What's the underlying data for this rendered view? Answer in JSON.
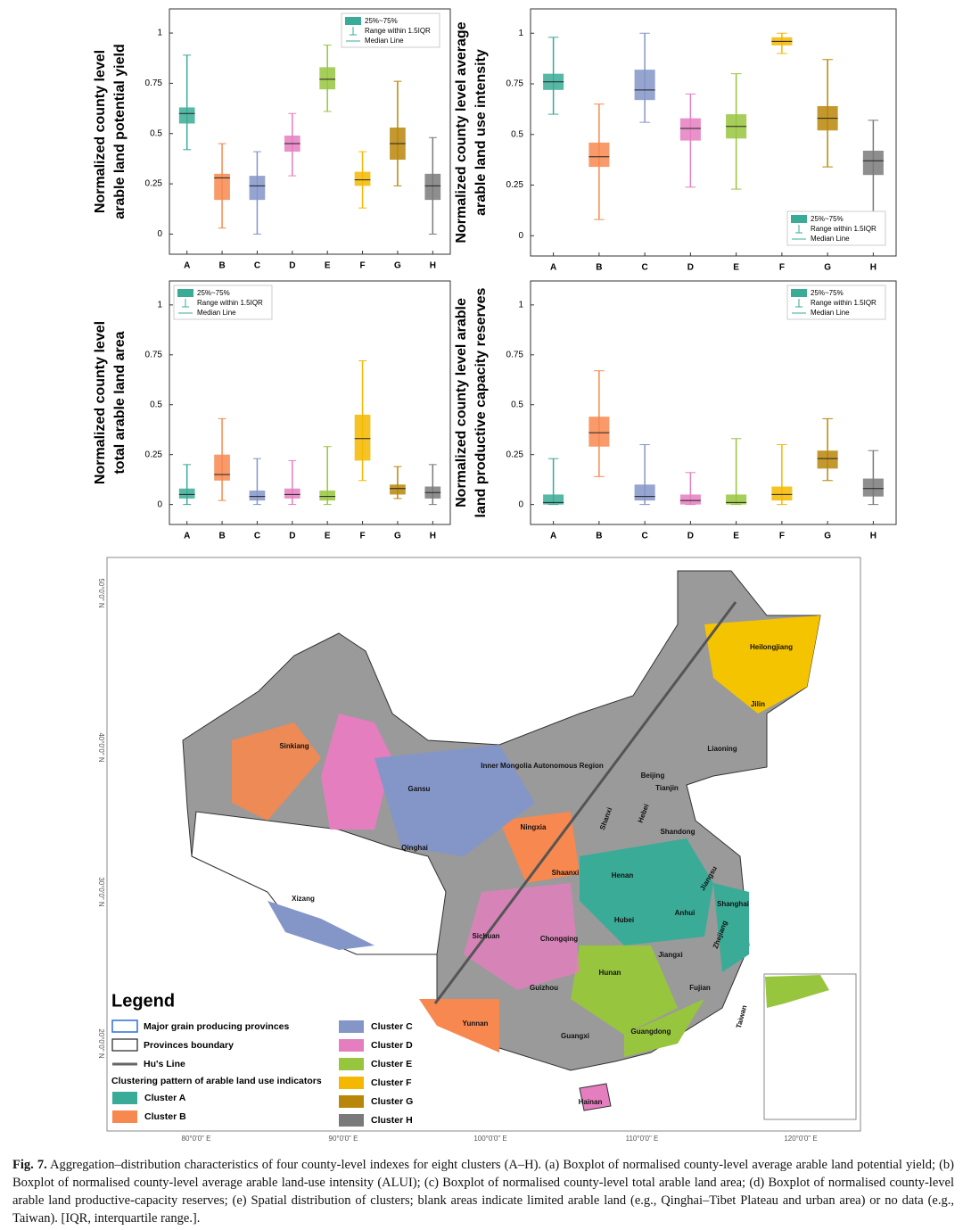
{
  "chart_data": [
    {
      "type": "boxplot",
      "panel": "a",
      "ylabel": [
        "Normalized county level",
        "arable land potential yield"
      ],
      "categories": [
        "A",
        "B",
        "C",
        "D",
        "E",
        "F",
        "G",
        "H"
      ],
      "colors": [
        "#3aab97",
        "#f7884f",
        "#8495c8",
        "#e57ebf",
        "#98c53e",
        "#f5b800",
        "#b8860b",
        "#7a7a7a"
      ],
      "low": [
        0.42,
        0.03,
        0,
        0.29,
        0.61,
        0.13,
        0.24,
        0
      ],
      "q1": [
        0.55,
        0.17,
        0.17,
        0.41,
        0.72,
        0.24,
        0.37,
        0.17
      ],
      "median": [
        0.6,
        0.28,
        0.24,
        0.45,
        0.77,
        0.27,
        0.45,
        0.24
      ],
      "q3": [
        0.63,
        0.3,
        0.29,
        0.49,
        0.83,
        0.31,
        0.53,
        0.3
      ],
      "high": [
        0.89,
        0.45,
        0.41,
        0.6,
        0.94,
        0.41,
        0.76,
        0.48
      ],
      "ylim": [
        -0.1,
        1.12
      ],
      "yticks": [
        0,
        0.25,
        0.5,
        0.75,
        1
      ],
      "legend": [
        "25%~75%",
        "Range within 1.5IQR",
        "Median Line"
      ],
      "legend_position": "upper right"
    },
    {
      "type": "boxplot",
      "panel": "b",
      "ylabel": [
        "Normalized county level average",
        "arable land use intensity"
      ],
      "categories": [
        "A",
        "B",
        "C",
        "D",
        "E",
        "F",
        "G",
        "H"
      ],
      "colors": [
        "#3aab97",
        "#f7884f",
        "#8495c8",
        "#e57ebf",
        "#98c53e",
        "#f5b800",
        "#b8860b",
        "#7a7a7a"
      ],
      "low": [
        0.6,
        0.08,
        0.56,
        0.24,
        0.23,
        0.9,
        0.34,
        0.02
      ],
      "q1": [
        0.72,
        0.34,
        0.67,
        0.47,
        0.48,
        0.94,
        0.52,
        0.3
      ],
      "median": [
        0.76,
        0.39,
        0.72,
        0.53,
        0.54,
        0.96,
        0.58,
        0.37
      ],
      "q3": [
        0.8,
        0.46,
        0.82,
        0.58,
        0.6,
        0.98,
        0.64,
        0.42
      ],
      "high": [
        0.98,
        0.65,
        1,
        0.7,
        0.8,
        1,
        0.87,
        0.57
      ],
      "ylim": [
        -0.1,
        1.12
      ],
      "yticks": [
        0,
        0.25,
        0.5,
        0.75,
        1
      ],
      "legend": [
        "25%~75%",
        "Range within 1.5IQR",
        "Median Line"
      ],
      "legend_position": "lower right"
    },
    {
      "type": "boxplot",
      "panel": "c",
      "ylabel": [
        "Normalized county level",
        "total arable land area"
      ],
      "categories": [
        "A",
        "B",
        "C",
        "D",
        "E",
        "F",
        "G",
        "H"
      ],
      "colors": [
        "#3aab97",
        "#f7884f",
        "#8495c8",
        "#e57ebf",
        "#98c53e",
        "#f5b800",
        "#b8860b",
        "#7a7a7a"
      ],
      "low": [
        0,
        0.02,
        0,
        0,
        0,
        0.12,
        0.03,
        0
      ],
      "q1": [
        0.03,
        0.12,
        0.02,
        0.03,
        0.02,
        0.22,
        0.05,
        0.03
      ],
      "median": [
        0.05,
        0.15,
        0.04,
        0.05,
        0.04,
        0.33,
        0.08,
        0.06
      ],
      "q3": [
        0.08,
        0.25,
        0.07,
        0.08,
        0.07,
        0.45,
        0.1,
        0.09
      ],
      "high": [
        0.2,
        0.43,
        0.23,
        0.22,
        0.29,
        0.72,
        0.19,
        0.2
      ],
      "ylim": [
        -0.1,
        1.12
      ],
      "yticks": [
        0,
        0.25,
        0.5,
        0.75,
        1
      ],
      "legend": [
        "25%~75%",
        "Range within 1.5IQR",
        "Median Line"
      ],
      "legend_position": "upper left"
    },
    {
      "type": "boxplot",
      "panel": "d",
      "ylabel": [
        "Normalized county level arable",
        "land productive capacity reserves"
      ],
      "categories": [
        "A",
        "B",
        "C",
        "D",
        "E",
        "F",
        "G",
        "H"
      ],
      "colors": [
        "#3aab97",
        "#f7884f",
        "#8495c8",
        "#e57ebf",
        "#98c53e",
        "#f5b800",
        "#b8860b",
        "#7a7a7a"
      ],
      "low": [
        0,
        0.14,
        0,
        0,
        0,
        0,
        0.12,
        0
      ],
      "q1": [
        0,
        0.29,
        0.02,
        0,
        0,
        0.02,
        0.18,
        0.04
      ],
      "median": [
        0.01,
        0.36,
        0.04,
        0.02,
        0.01,
        0.05,
        0.23,
        0.08
      ],
      "q3": [
        0.05,
        0.44,
        0.1,
        0.05,
        0.05,
        0.09,
        0.27,
        0.13
      ],
      "high": [
        0.23,
        0.67,
        0.3,
        0.16,
        0.33,
        0.3,
        0.43,
        0.27
      ],
      "ylim": [
        -0.1,
        1.12
      ],
      "yticks": [
        0,
        0.25,
        0.5,
        0.75,
        1
      ],
      "legend": [
        "25%~75%",
        "Range within 1.5IQR",
        "Median Line"
      ],
      "legend_position": "upper right"
    }
  ],
  "map": {
    "lon_labels": [
      "80°0'0\" E",
      "90°0'0\" E",
      "100°0'0\" E",
      "110°0'0\" E",
      "120°0'0\" E"
    ],
    "lat_labels": [
      "50°0'0\" N",
      "40°0'0\" N",
      "30°0'0\" N",
      "20°0'0\" N"
    ],
    "provinces": [
      "Heilongjiang",
      "Jilin",
      "Liaoning",
      "Inner Mongolia Autonomous Region",
      "Beijing",
      "Tianjin",
      "Hebei",
      "Shanxi",
      "Shandong",
      "Ningxia",
      "Gansu",
      "Sinkiang",
      "Qinghai",
      "Shaanxi",
      "Henan",
      "Jiangsu",
      "Shanghai",
      "Anhui",
      "Hubei",
      "Zhejiang",
      "Sichuan",
      "Chongqing",
      "Xizang",
      "Jiangxi",
      "Hunan",
      "Fujian",
      "Guizhou",
      "Taiwan",
      "Yunnan",
      "Guangxi",
      "Guangdong",
      "Hainan"
    ],
    "legend": {
      "title": "Legend",
      "lines": [
        "Major grain producing provinces",
        "Provinces boundary",
        "Hu's Line"
      ],
      "heading": "Clustering pattern of arable land use indicators",
      "clusters": [
        "Cluster A",
        "Cluster B",
        "Cluster C",
        "Cluster D",
        "Cluster E",
        "Cluster F",
        "Cluster G",
        "Cluster H"
      ]
    }
  },
  "caption": {
    "label": "Fig. 7.",
    "text": "Aggregation–distribution characteristics of four county-level indexes for eight clusters (A–H). (a) Boxplot of normalised county-level average arable land potential yield; (b) Boxplot of normalised county-level average arable land-use intensity (ALUI); (c) Boxplot of normalised county-level total arable land area; (d) Boxplot of normalised county-level arable land productive-capacity reserves; (e) Spatial distribution of clusters; blank areas indicate limited arable land (e.g., Qinghai–Tibet Plateau and urban area) or no data (e.g., Taiwan). [IQR, interquartile range.]."
  }
}
